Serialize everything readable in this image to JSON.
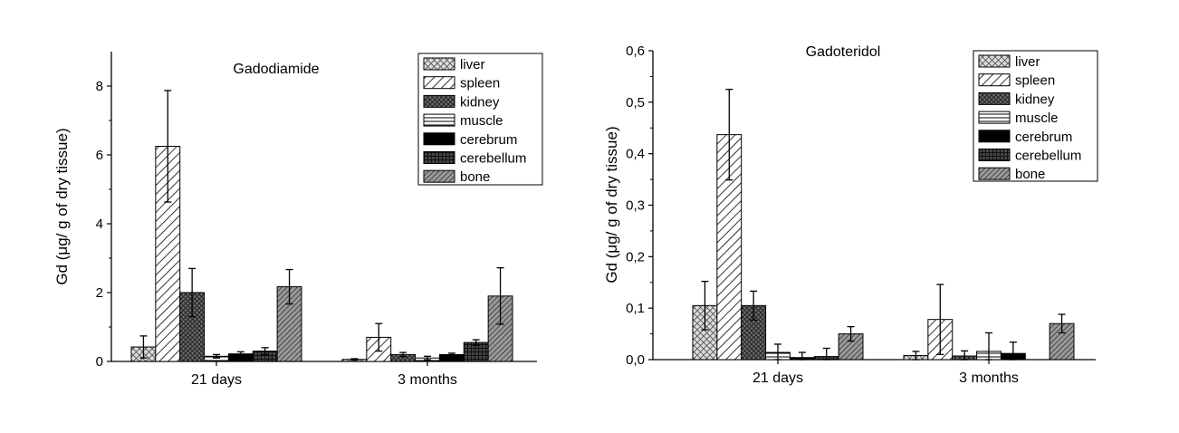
{
  "chart_data": [
    {
      "type": "bar",
      "title": "Gadodiamide",
      "ylabel": "Gd (μg/ g of dry tissue)",
      "xlabel": "",
      "categories": [
        "21 days",
        "3 months"
      ],
      "ylim": [
        0,
        9
      ],
      "yticks": [
        "0",
        "2",
        "4",
        "6",
        "8"
      ],
      "ytick_values": [
        0,
        2,
        4,
        6,
        8
      ],
      "legend_position": "top-right",
      "series": [
        {
          "name": "liver",
          "pattern": "crosshatch-light",
          "values": [
            0.42,
            0.06
          ],
          "errors": [
            0.32,
            0.02
          ]
        },
        {
          "name": "spleen",
          "pattern": "diag-wide",
          "values": [
            6.25,
            0.7
          ],
          "errors": [
            1.62,
            0.4
          ]
        },
        {
          "name": "kidney",
          "pattern": "crosshatch-dark",
          "values": [
            2.0,
            0.2
          ],
          "errors": [
            0.7,
            0.06
          ]
        },
        {
          "name": "muscle",
          "pattern": "horizontal",
          "values": [
            0.15,
            0.1
          ],
          "errors": [
            0.05,
            0.05
          ]
        },
        {
          "name": "cerebrum",
          "pattern": "solid-black",
          "values": [
            0.22,
            0.2
          ],
          "errors": [
            0.06,
            0.04
          ]
        },
        {
          "name": "cerebellum",
          "pattern": "grid-dark",
          "values": [
            0.3,
            0.55
          ],
          "errors": [
            0.1,
            0.08
          ]
        },
        {
          "name": "bone",
          "pattern": "diag-dense",
          "values": [
            2.17,
            1.9
          ],
          "errors": [
            0.5,
            0.82
          ]
        }
      ]
    },
    {
      "type": "bar",
      "title": "Gadoteridol",
      "ylabel": "Gd (μg/ g of dry tissue)",
      "xlabel": "",
      "categories": [
        "21 days",
        "3 months"
      ],
      "ylim": [
        0,
        0.6
      ],
      "yticks": [
        "0,0",
        "0,1",
        "0,2",
        "0,3",
        "0,4",
        "0,5",
        "0,6"
      ],
      "ytick_values": [
        0,
        0.1,
        0.2,
        0.3,
        0.4,
        0.5,
        0.6
      ],
      "legend_position": "top-right",
      "series": [
        {
          "name": "liver",
          "pattern": "crosshatch-light",
          "values": [
            0.105,
            0.008
          ],
          "errors": [
            0.047,
            0.008
          ]
        },
        {
          "name": "spleen",
          "pattern": "diag-wide",
          "values": [
            0.437,
            0.078
          ],
          "errors": [
            0.088,
            0.068
          ]
        },
        {
          "name": "kidney",
          "pattern": "crosshatch-dark",
          "values": [
            0.105,
            0.007
          ],
          "errors": [
            0.028,
            0.01
          ]
        },
        {
          "name": "muscle",
          "pattern": "horizontal",
          "values": [
            0.014,
            0.016
          ],
          "errors": [
            0.016,
            0.036
          ]
        },
        {
          "name": "cerebrum",
          "pattern": "solid-black",
          "values": [
            0.004,
            0.012
          ],
          "errors": [
            0.01,
            0.022
          ]
        },
        {
          "name": "cerebellum",
          "pattern": "grid-dark",
          "values": [
            0.006,
            0.0
          ],
          "errors": [
            0.016,
            0.0
          ]
        },
        {
          "name": "bone",
          "pattern": "diag-dense",
          "values": [
            0.05,
            0.07
          ],
          "errors": [
            0.014,
            0.018
          ]
        }
      ]
    }
  ]
}
